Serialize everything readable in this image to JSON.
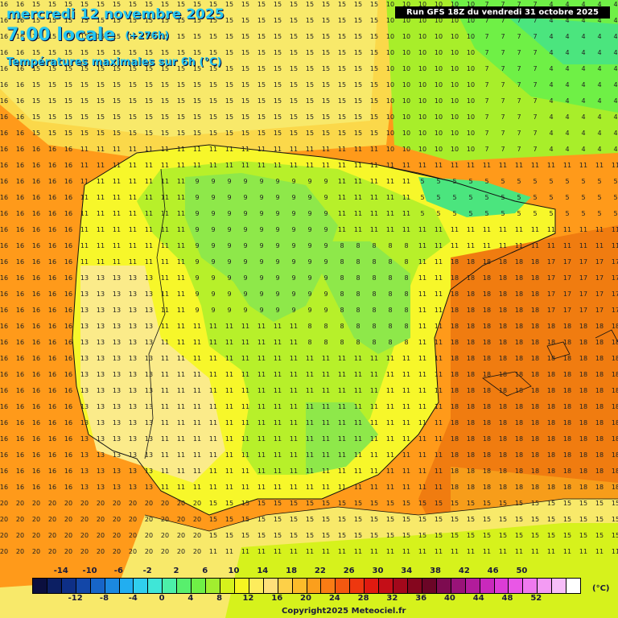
{
  "header": {
    "date": "mercredi 12 novembre 2025",
    "time": "7:00 locale",
    "offset": "(+276h)",
    "subtitle": "Températures maximales sur 6h (°C)",
    "run": "Run GFS 18Z du vendredi 31 octobre 2025"
  },
  "legend": {
    "top_labels": [
      "-14",
      "-10",
      "-6",
      "-2",
      "2",
      "6",
      "10",
      "14",
      "18",
      "22",
      "26",
      "30",
      "34",
      "38",
      "42",
      "46",
      "50"
    ],
    "bottom_labels": [
      "-12",
      "-8",
      "-4",
      "0",
      "4",
      "8",
      "12",
      "16",
      "20",
      "24",
      "28",
      "32",
      "36",
      "40",
      "44",
      "48",
      "52"
    ],
    "unit": "(°C)",
    "colors": [
      "#0b0f3f",
      "#0c1f63",
      "#0e2f86",
      "#1347a8",
      "#1765c8",
      "#1b88e0",
      "#22aef0",
      "#30cfee",
      "#3fe6d7",
      "#4cf0a8",
      "#58ef6d",
      "#6ff046",
      "#a2ee2f",
      "#d6f21c",
      "#f6f521",
      "#fdec5c",
      "#fee07a",
      "#fdd048",
      "#fcbb2a",
      "#fb9f1c",
      "#f97c14",
      "#f45810",
      "#ee370f",
      "#e01a10",
      "#c40e17",
      "#a3081b",
      "#85061e",
      "#6b0526",
      "#7d0b50",
      "#991378",
      "#b21c9b",
      "#c929bc",
      "#dc3cd6",
      "#e957e6",
      "#ef79ee",
      "#f39bf3",
      "#f7bef8",
      "#ffffff"
    ]
  },
  "copyright": "Copyright2025 Meteociel.fr",
  "map": {
    "region": "Iberian Peninsula",
    "palette": {
      "sea_warm": "#ff9a1a",
      "sea_hot": "#f07c10",
      "cool": "#8ee84a",
      "cold": "#4be57e",
      "mild": "#fbe74f",
      "yellow": "#f7f72a",
      "pale": "#fbeb8a"
    }
  }
}
